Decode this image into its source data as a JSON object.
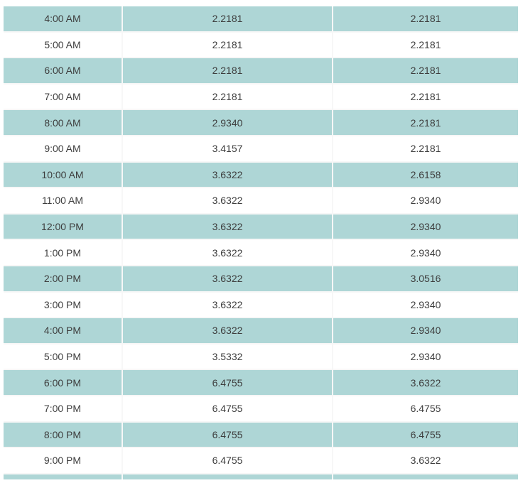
{
  "table": {
    "description": "hourly-values-table",
    "columns": [
      {
        "key": "time"
      },
      {
        "key": "value1"
      },
      {
        "key": "value2"
      }
    ],
    "rows": [
      {
        "time": "4:00 AM",
        "value1": "2.2181",
        "value2": "2.2181"
      },
      {
        "time": "5:00 AM",
        "value1": "2.2181",
        "value2": "2.2181"
      },
      {
        "time": "6:00 AM",
        "value1": "2.2181",
        "value2": "2.2181"
      },
      {
        "time": "7:00 AM",
        "value1": "2.2181",
        "value2": "2.2181"
      },
      {
        "time": "8:00 AM",
        "value1": "2.9340",
        "value2": "2.2181"
      },
      {
        "time": "9:00 AM",
        "value1": "3.4157",
        "value2": "2.2181"
      },
      {
        "time": "10:00 AM",
        "value1": "3.6322",
        "value2": "2.6158"
      },
      {
        "time": "11:00 AM",
        "value1": "3.6322",
        "value2": "2.9340"
      },
      {
        "time": "12:00 PM",
        "value1": "3.6322",
        "value2": "2.9340"
      },
      {
        "time": "1:00 PM",
        "value1": "3.6322",
        "value2": "2.9340"
      },
      {
        "time": "2:00 PM",
        "value1": "3.6322",
        "value2": "3.0516"
      },
      {
        "time": "3:00 PM",
        "value1": "3.6322",
        "value2": "2.9340"
      },
      {
        "time": "4:00 PM",
        "value1": "3.6322",
        "value2": "2.9340"
      },
      {
        "time": "5:00 PM",
        "value1": "3.5332",
        "value2": "2.9340"
      },
      {
        "time": "6:00 PM",
        "value1": "6.4755",
        "value2": "3.6322"
      },
      {
        "time": "7:00 PM",
        "value1": "6.4755",
        "value2": "6.4755"
      },
      {
        "time": "8:00 PM",
        "value1": "6.4755",
        "value2": "6.4755"
      },
      {
        "time": "9:00 PM",
        "value1": "6.4755",
        "value2": "3.6322"
      }
    ],
    "colors": {
      "alt_row_bg": "#aed6d6",
      "base_row_bg": "#ffffff",
      "text": "#3d3d3d",
      "grid_line": "#f7f7f7"
    },
    "striping": "alternating, starting teal at first visible row",
    "partial_next_row_visible": true
  }
}
